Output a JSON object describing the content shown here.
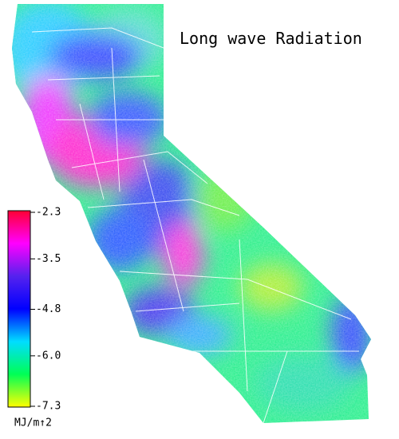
{
  "title": "Long wave Radiation",
  "colorbar": {
    "range": [
      -7.3,
      -2.3
    ],
    "ticks": [
      -2.3,
      -3.5,
      -4.8,
      {
        "value": -6.0,
        "label": "-6.0"
      },
      -7.3
    ],
    "colors": [
      "#ff0033",
      "#ff00ff",
      "#5522ee",
      "#0000ff",
      "#00ddff",
      "#00ff55",
      "#ffff00"
    ],
    "unit": "MJ/m↑2"
  }
}
